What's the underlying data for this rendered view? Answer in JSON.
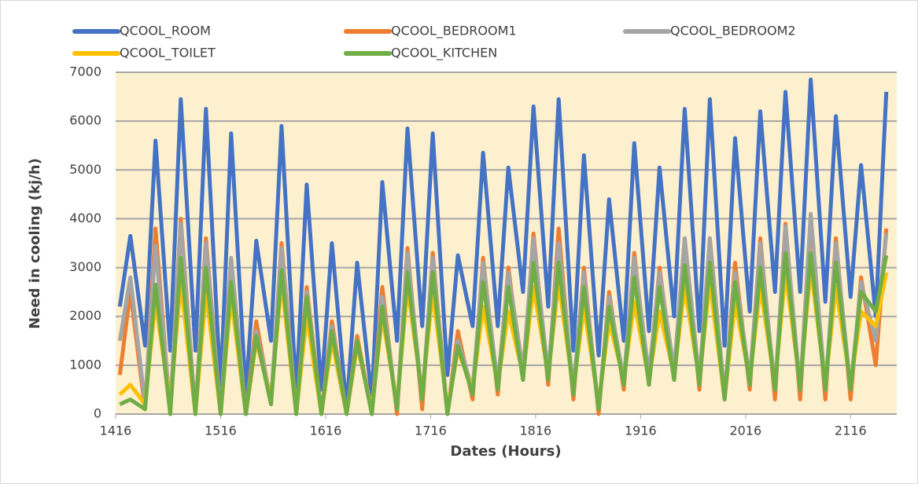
{
  "chart_data": {
    "type": "line",
    "x_label": "Dates (Hours)",
    "y_label": "Need in cooling (kj/h)",
    "x": [
      1420,
      1430,
      1444,
      1454,
      1468,
      1478,
      1492,
      1502,
      1516,
      1526,
      1540,
      1550,
      1564,
      1574,
      1588,
      1598,
      1612,
      1622,
      1636,
      1646,
      1660,
      1670,
      1684,
      1694,
      1708,
      1718,
      1732,
      1742,
      1756,
      1766,
      1780,
      1790,
      1804,
      1814,
      1828,
      1838,
      1852,
      1862,
      1876,
      1886,
      1900,
      1910,
      1924,
      1934,
      1948,
      1958,
      1972,
      1982,
      1996,
      2006,
      2020,
      2030,
      2044,
      2054,
      2068,
      2078,
      2092,
      2102,
      2116,
      2126,
      2140,
      2150
    ],
    "series": [
      {
        "name": "QCOOL_ROOM",
        "color": "#4472c4",
        "values": [
          2200,
          3650,
          1400,
          5600,
          1300,
          6450,
          1300,
          6250,
          500,
          5750,
          400,
          3550,
          1500,
          5900,
          400,
          4700,
          500,
          3500,
          100,
          3100,
          300,
          4750,
          1500,
          5850,
          1800,
          5750,
          800,
          3250,
          1800,
          5350,
          1800,
          5050,
          2500,
          6300,
          2200,
          6450,
          1300,
          5300,
          1200,
          4400,
          1500,
          5550,
          1700,
          5050,
          2000,
          6250,
          1700,
          6450,
          1400,
          5650,
          2100,
          6200,
          2500,
          6600,
          2500,
          6850,
          2300,
          6100,
          2400,
          5100,
          2000,
          6600
        ]
      },
      {
        "name": "QCOOL_BEDROOM1",
        "color": "#ed7d31",
        "values": [
          800,
          2500,
          100,
          3800,
          0,
          4000,
          0,
          3600,
          0,
          3100,
          0,
          1900,
          200,
          3500,
          0,
          2600,
          0,
          1900,
          0,
          1600,
          0,
          2600,
          0,
          3400,
          100,
          3300,
          0,
          1700,
          300,
          3200,
          400,
          3000,
          700,
          3700,
          600,
          3800,
          300,
          3000,
          0,
          2500,
          500,
          3300,
          600,
          3000,
          700,
          3600,
          500,
          3600,
          300,
          3100,
          500,
          3600,
          300,
          3900,
          300,
          4000,
          300,
          3600,
          300,
          2800,
          1000,
          3800
        ]
      },
      {
        "name": "QCOOL_BEDROOM2",
        "color": "#a5a5a5",
        "values": [
          1500,
          2800,
          200,
          3450,
          100,
          3900,
          0,
          3500,
          0,
          3200,
          0,
          1700,
          300,
          3400,
          0,
          2500,
          0,
          1800,
          0,
          1500,
          0,
          2400,
          100,
          3300,
          300,
          3200,
          0,
          1500,
          500,
          3100,
          600,
          2900,
          900,
          3600,
          800,
          3500,
          500,
          2900,
          100,
          2400,
          700,
          3200,
          800,
          2900,
          900,
          3600,
          700,
          3600,
          400,
          2900,
          700,
          3500,
          500,
          3850,
          500,
          4100,
          500,
          3500,
          500,
          2700,
          1500,
          3700
        ]
      },
      {
        "name": "QCOOL_TOILET",
        "color": "#ffc000",
        "values": [
          400,
          600,
          200,
          2300,
          200,
          2700,
          0,
          2500,
          0,
          2400,
          0,
          1500,
          300,
          2700,
          0,
          2000,
          0,
          1500,
          0,
          1400,
          100,
          2000,
          200,
          2600,
          400,
          2500,
          100,
          1300,
          500,
          2200,
          600,
          2100,
          800,
          2600,
          800,
          2700,
          500,
          2200,
          200,
          1900,
          700,
          2300,
          700,
          2100,
          800,
          2600,
          700,
          2700,
          300,
          2300,
          700,
          2600,
          600,
          2900,
          600,
          3000,
          600,
          2600,
          600,
          2100,
          1800,
          2900
        ]
      },
      {
        "name": "QCOOL_KITCHEN",
        "color": "#70ad47",
        "values": [
          200,
          300,
          100,
          2650,
          0,
          3200,
          0,
          3000,
          0,
          2700,
          0,
          1600,
          200,
          2950,
          0,
          2400,
          0,
          1700,
          0,
          1500,
          0,
          2200,
          100,
          2900,
          300,
          2900,
          0,
          1400,
          400,
          2700,
          500,
          2600,
          700,
          3100,
          700,
          3100,
          400,
          2600,
          100,
          2200,
          600,
          2800,
          600,
          2600,
          700,
          3050,
          600,
          3100,
          300,
          2700,
          600,
          3000,
          500,
          3300,
          500,
          3300,
          500,
          3100,
          500,
          2500,
          2100,
          3250
        ]
      }
    ],
    "xlim": [
      1416,
      2160
    ],
    "xticks": [
      1416,
      1516,
      1616,
      1716,
      1816,
      1916,
      2016,
      2116
    ],
    "ylim": [
      0,
      7000
    ],
    "yticks": [
      0,
      1000,
      2000,
      3000,
      4000,
      5000,
      6000,
      7000
    ],
    "grid": true,
    "plot_background": "#fdf0cf",
    "legend": "top"
  }
}
